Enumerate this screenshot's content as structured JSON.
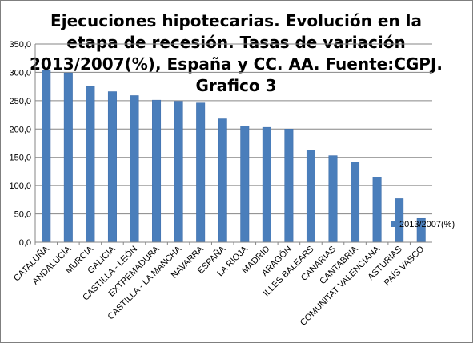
{
  "chart_data": {
    "type": "bar",
    "title_lines": [
      "Ejecuciones hipotecarias. Evolución en  la",
      "etapa de recesión. Tasas  de variación",
      "2013/2007(%), España y CC. AA. Fuente:CGPJ.",
      "Grafico 3"
    ],
    "categories": [
      "CATALUÑA",
      "ANDALUCÍA",
      "MURCIA",
      "GALICIA",
      "CASTILLA - LEÓN",
      "EXTREMADURA",
      "CASTILLA - LA MANCHA",
      "NAVARRA",
      "ESPAÑA",
      "LA RIOJA",
      "MADRID",
      "ARAGÓN",
      "ILLES BALEARS",
      "CANARIAS",
      "CANTABRIA",
      "COMUNITAT VALENCIANA",
      "ASTURIAS",
      "PAÍS VASCO"
    ],
    "series": [
      {
        "name": "2013/2007(%)",
        "values": [
          303,
          299,
          275,
          266,
          259,
          251,
          249,
          246,
          218,
          205,
          203,
          200,
          163,
          153,
          142,
          115,
          77,
          42
        ]
      }
    ],
    "yticks": [
      "0,0",
      "50,0",
      "100,0",
      "150,0",
      "200,0",
      "250,0",
      "300,0",
      "350,0"
    ],
    "ylim": [
      0,
      350
    ],
    "grid": "horizontal",
    "legend_position": "right",
    "colors": {
      "bar": "#4a7ebb",
      "bar_edge": "#3a6aa8",
      "grid": "#868686"
    }
  }
}
